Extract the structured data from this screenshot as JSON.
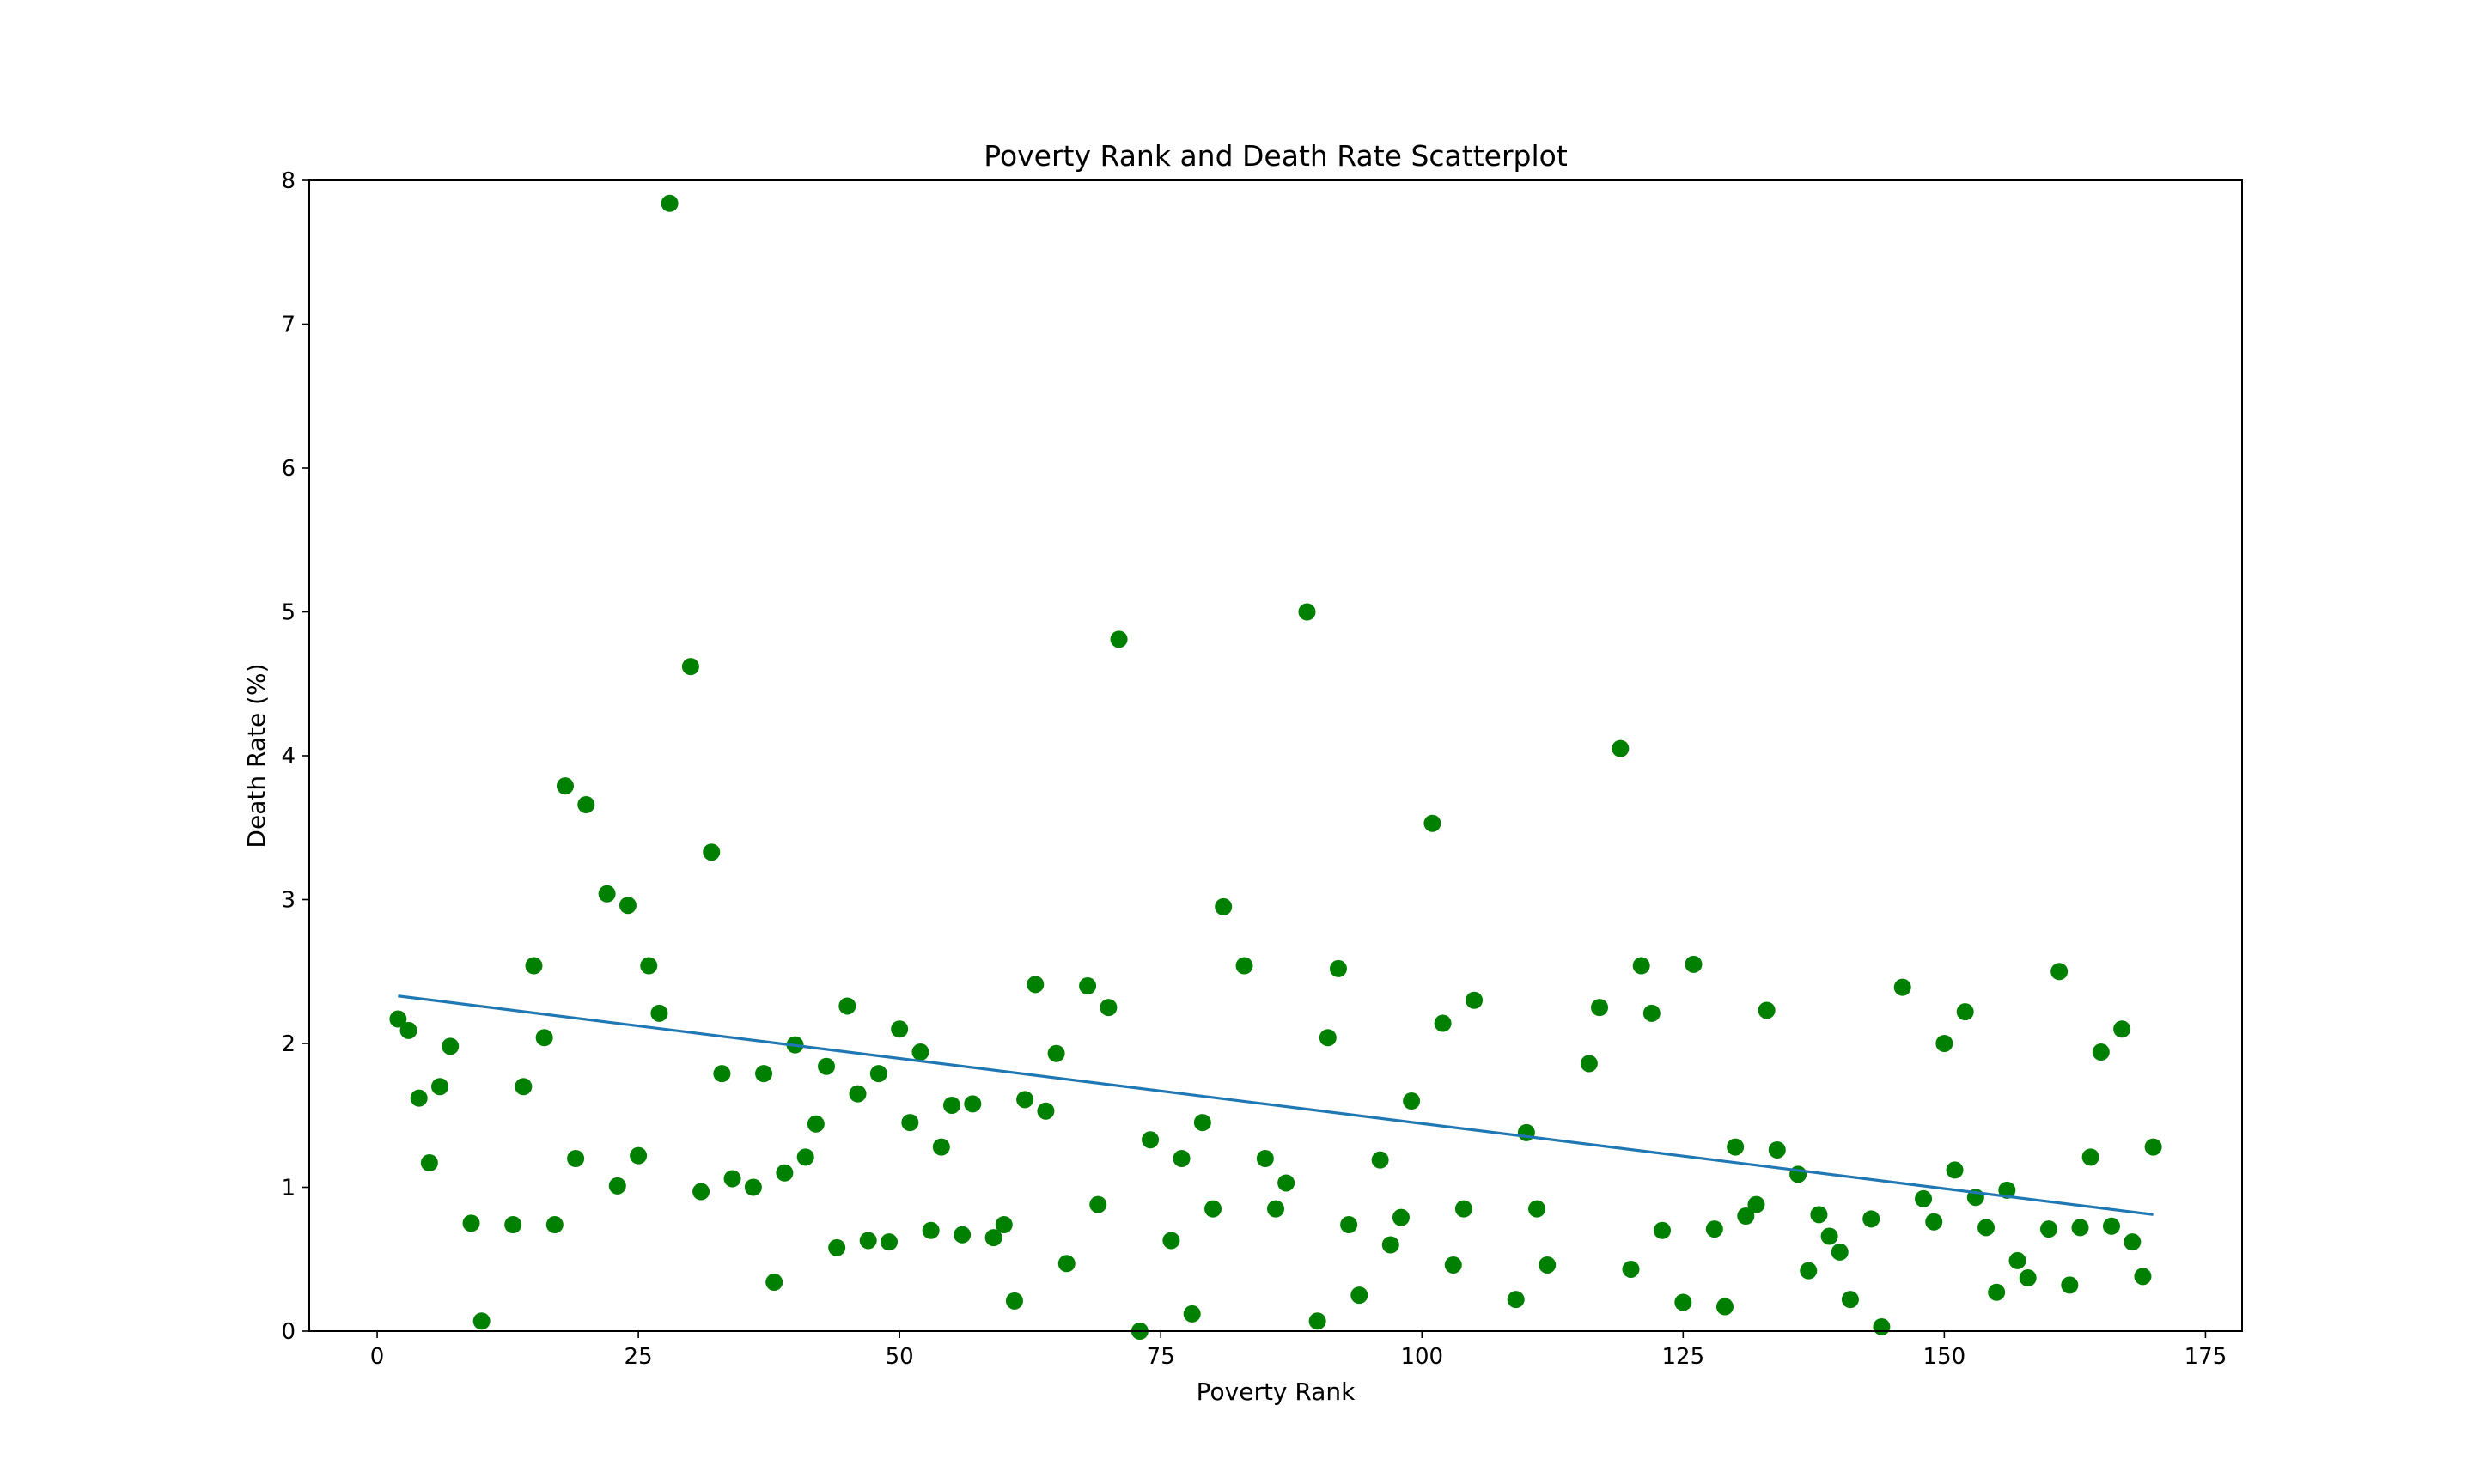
{
  "chart_data": {
    "type": "scatter",
    "title": "Poverty Rank and Death Rate Scatterplot",
    "xlabel": "Poverty Rank",
    "ylabel": "Death Rate (%)",
    "xlim": [
      -6.5,
      178.5
    ],
    "ylim": [
      0,
      8
    ],
    "xticks": [
      0,
      25,
      50,
      75,
      100,
      125,
      150,
      175
    ],
    "yticks": [
      0,
      1,
      2,
      3,
      4,
      5,
      6,
      7,
      8
    ],
    "grid": false,
    "colors": {
      "points": "#008000",
      "trendline": "#1f77b4"
    },
    "points": [
      [
        2,
        2.17
      ],
      [
        3,
        2.09
      ],
      [
        4,
        1.62
      ],
      [
        5,
        1.17
      ],
      [
        6,
        1.7
      ],
      [
        7,
        1.98
      ],
      [
        9,
        0.75
      ],
      [
        10,
        0.07
      ],
      [
        13,
        0.74
      ],
      [
        14,
        1.7
      ],
      [
        15,
        2.54
      ],
      [
        16,
        2.04
      ],
      [
        17,
        0.74
      ],
      [
        18,
        3.79
      ],
      [
        19,
        1.2
      ],
      [
        20,
        3.66
      ],
      [
        22,
        3.04
      ],
      [
        23,
        1.01
      ],
      [
        24,
        2.96
      ],
      [
        25,
        1.22
      ],
      [
        26,
        2.54
      ],
      [
        27,
        2.21
      ],
      [
        28,
        7.84
      ],
      [
        30,
        4.62
      ],
      [
        31,
        0.97
      ],
      [
        32,
        3.33
      ],
      [
        33,
        1.79
      ],
      [
        34,
        1.06
      ],
      [
        36,
        1.0
      ],
      [
        37,
        1.79
      ],
      [
        38,
        0.34
      ],
      [
        39,
        1.1
      ],
      [
        40,
        1.99
      ],
      [
        41,
        1.21
      ],
      [
        42,
        1.44
      ],
      [
        43,
        1.84
      ],
      [
        44,
        0.58
      ],
      [
        45,
        2.26
      ],
      [
        46,
        1.65
      ],
      [
        47,
        0.63
      ],
      [
        48,
        1.79
      ],
      [
        49,
        0.62
      ],
      [
        50,
        2.1
      ],
      [
        51,
        1.45
      ],
      [
        52,
        1.94
      ],
      [
        53,
        0.7
      ],
      [
        54,
        1.28
      ],
      [
        55,
        1.57
      ],
      [
        56,
        0.67
      ],
      [
        57,
        1.58
      ],
      [
        59,
        0.65
      ],
      [
        60,
        0.74
      ],
      [
        61,
        0.21
      ],
      [
        62,
        1.61
      ],
      [
        63,
        2.41
      ],
      [
        64,
        1.53
      ],
      [
        65,
        1.93
      ],
      [
        66,
        0.47
      ],
      [
        68,
        2.4
      ],
      [
        69,
        0.88
      ],
      [
        70,
        2.25
      ],
      [
        71,
        4.81
      ],
      [
        73,
        0.0
      ],
      [
        74,
        1.33
      ],
      [
        76,
        0.63
      ],
      [
        77,
        1.2
      ],
      [
        78,
        0.12
      ],
      [
        79,
        1.45
      ],
      [
        80,
        0.85
      ],
      [
        81,
        2.95
      ],
      [
        83,
        2.54
      ],
      [
        85,
        1.2
      ],
      [
        86,
        0.85
      ],
      [
        87,
        1.03
      ],
      [
        89,
        5.0
      ],
      [
        90,
        0.07
      ],
      [
        91,
        2.04
      ],
      [
        92,
        2.52
      ],
      [
        93,
        0.74
      ],
      [
        94,
        0.25
      ],
      [
        96,
        1.19
      ],
      [
        97,
        0.6
      ],
      [
        98,
        0.79
      ],
      [
        99,
        1.6
      ],
      [
        101,
        3.53
      ],
      [
        102,
        2.14
      ],
      [
        103,
        0.46
      ],
      [
        104,
        0.85
      ],
      [
        105,
        2.3
      ],
      [
        109,
        0.22
      ],
      [
        110,
        1.38
      ],
      [
        111,
        0.85
      ],
      [
        112,
        0.46
      ],
      [
        116,
        1.86
      ],
      [
        117,
        2.25
      ],
      [
        119,
        4.05
      ],
      [
        120,
        0.43
      ],
      [
        121,
        2.54
      ],
      [
        122,
        2.21
      ],
      [
        123,
        0.7
      ],
      [
        125,
        0.2
      ],
      [
        126,
        2.55
      ],
      [
        128,
        0.71
      ],
      [
        129,
        0.17
      ],
      [
        130,
        1.28
      ],
      [
        131,
        0.8
      ],
      [
        132,
        0.88
      ],
      [
        133,
        2.23
      ],
      [
        134,
        1.26
      ],
      [
        136,
        1.09
      ],
      [
        137,
        0.42
      ],
      [
        138,
        0.81
      ],
      [
        139,
        0.66
      ],
      [
        140,
        0.55
      ],
      [
        141,
        0.22
      ],
      [
        143,
        0.78
      ],
      [
        144,
        0.03
      ],
      [
        146,
        2.39
      ],
      [
        148,
        0.92
      ],
      [
        149,
        0.76
      ],
      [
        150,
        2.0
      ],
      [
        151,
        1.12
      ],
      [
        152,
        2.22
      ],
      [
        153,
        0.93
      ],
      [
        154,
        0.72
      ],
      [
        155,
        0.27
      ],
      [
        156,
        0.98
      ],
      [
        157,
        0.49
      ],
      [
        158,
        0.37
      ],
      [
        160,
        0.71
      ],
      [
        161,
        2.5
      ],
      [
        162,
        0.32
      ],
      [
        163,
        0.72
      ],
      [
        164,
        1.21
      ],
      [
        165,
        1.94
      ],
      [
        166,
        0.73
      ],
      [
        167,
        2.1
      ],
      [
        168,
        0.62
      ],
      [
        169,
        0.38
      ],
      [
        170,
        1.28
      ]
    ],
    "trendline": {
      "x": [
        2,
        170
      ],
      "y": [
        2.33,
        0.81
      ]
    }
  }
}
